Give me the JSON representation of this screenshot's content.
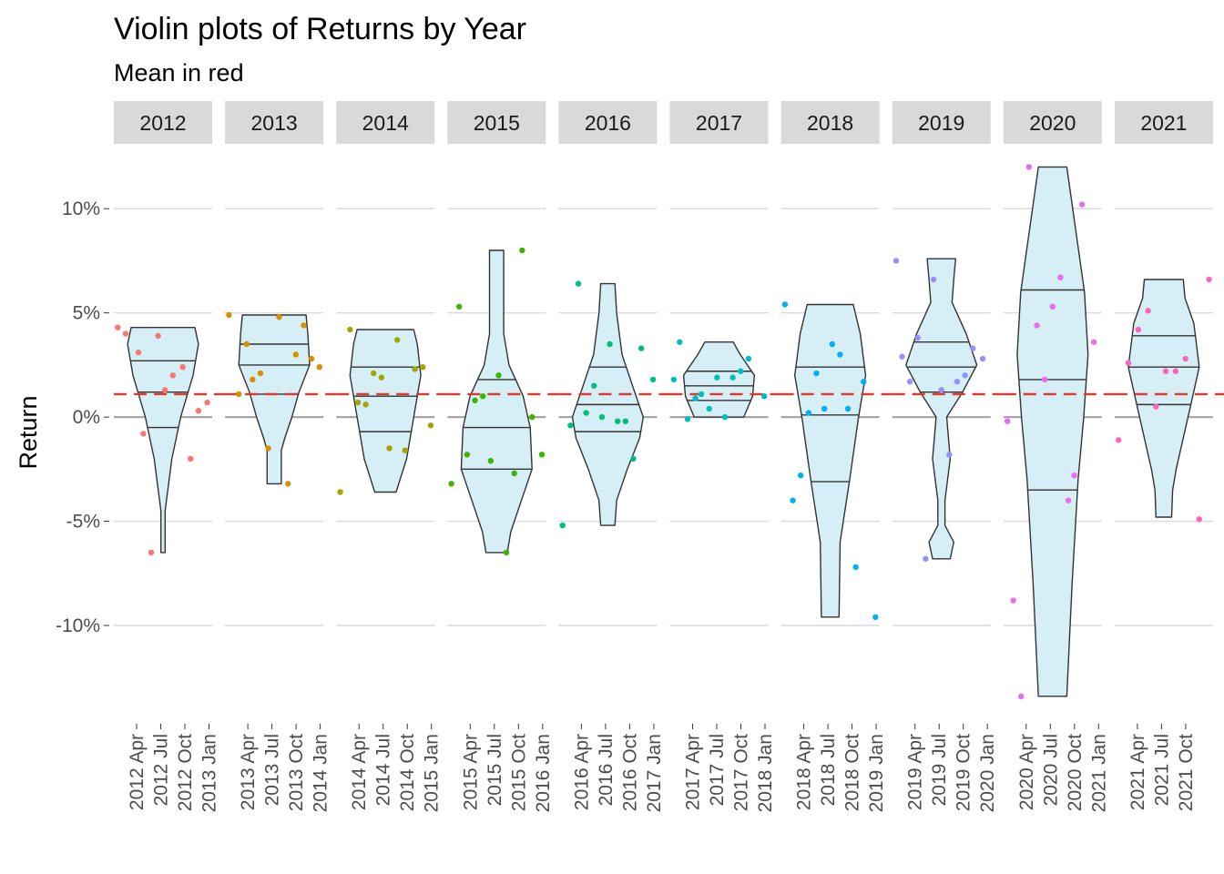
{
  "chart_data": {
    "type": "violin",
    "title": "Violin plots of Returns by Year",
    "subtitle": "Mean in red",
    "ylabel": "Return",
    "xlabel": "",
    "ylim": [
      -0.145,
      0.125
    ],
    "yticks": [
      {
        "value": 0.1,
        "label": "10%"
      },
      {
        "value": 0.05,
        "label": "5%"
      },
      {
        "value": 0.0,
        "label": "0%"
      },
      {
        "value": -0.05,
        "label": "-5%"
      },
      {
        "value": -0.1,
        "label": "-10%"
      }
    ],
    "mean_line": 0.011,
    "colors": {
      "violin_fill": "#d6eef5",
      "violin_stroke": "#333333",
      "mean_line": "#e0362c",
      "zero_line": "#a6a6a6",
      "grid": "#d9d9d9",
      "strip_bg": "#d9d9d9"
    },
    "panels": [
      {
        "year": "2012",
        "color": "#f8766d",
        "xticks": [
          "2012 Apr",
          "2012 Jul",
          "2012 Oct",
          "2013 Jan"
        ],
        "quantiles": [
          -0.005,
          0.012,
          0.027
        ],
        "shape": [
          [
            -0.065,
            0.06
          ],
          [
            -0.045,
            0.06
          ],
          [
            -0.02,
            0.25
          ],
          [
            0.0,
            0.5
          ],
          [
            0.02,
            0.85
          ],
          [
            0.035,
            1.0
          ],
          [
            0.043,
            0.9
          ]
        ],
        "points": [
          [
            0.04,
            0.043
          ],
          [
            0.12,
            0.04
          ],
          [
            0.25,
            0.031
          ],
          [
            0.3,
            -0.008
          ],
          [
            0.38,
            -0.065
          ],
          [
            0.45,
            0.039
          ],
          [
            0.52,
            0.013
          ],
          [
            0.6,
            0.02
          ],
          [
            0.7,
            0.024
          ],
          [
            0.78,
            -0.02
          ],
          [
            0.86,
            0.003
          ],
          [
            0.95,
            0.007
          ]
        ]
      },
      {
        "year": "2013",
        "color": "#d89000",
        "xticks": [
          "2013 Apr",
          "2013 Jul",
          "2013 Oct",
          "2014 Jan"
        ],
        "quantiles": [
          0.011,
          0.025,
          0.035
        ],
        "shape": [
          [
            -0.032,
            0.2
          ],
          [
            -0.016,
            0.2
          ],
          [
            -0.01,
            0.3
          ],
          [
            0.0,
            0.5
          ],
          [
            0.012,
            0.7
          ],
          [
            0.025,
            1.0
          ],
          [
            0.04,
            0.95
          ],
          [
            0.049,
            0.9
          ]
        ],
        "points": [
          [
            0.04,
            0.049
          ],
          [
            0.14,
            0.011
          ],
          [
            0.22,
            0.035
          ],
          [
            0.28,
            0.018
          ],
          [
            0.36,
            0.021
          ],
          [
            0.44,
            -0.015
          ],
          [
            0.55,
            0.048
          ],
          [
            0.64,
            -0.032
          ],
          [
            0.72,
            0.03
          ],
          [
            0.8,
            0.044
          ],
          [
            0.88,
            0.028
          ],
          [
            0.96,
            0.024
          ]
        ]
      },
      {
        "year": "2014",
        "color": "#a3a500",
        "xticks": [
          "2014 Apr",
          "2014 Jul",
          "2014 Oct",
          "2015 Jan"
        ],
        "quantiles": [
          -0.007,
          0.01,
          0.024
        ],
        "shape": [
          [
            -0.036,
            0.3
          ],
          [
            -0.02,
            0.6
          ],
          [
            0.0,
            0.8
          ],
          [
            0.02,
            1.0
          ],
          [
            0.035,
            0.9
          ],
          [
            0.042,
            0.8
          ]
        ],
        "points": [
          [
            0.04,
            -0.036
          ],
          [
            0.14,
            0.042
          ],
          [
            0.22,
            0.007
          ],
          [
            0.3,
            0.006
          ],
          [
            0.38,
            0.021
          ],
          [
            0.46,
            0.019
          ],
          [
            0.54,
            -0.015
          ],
          [
            0.62,
            0.037
          ],
          [
            0.7,
            -0.016
          ],
          [
            0.8,
            0.023
          ],
          [
            0.88,
            0.024
          ],
          [
            0.96,
            -0.004
          ]
        ]
      },
      {
        "year": "2015",
        "color": "#39b600",
        "xticks": [
          "2015 Apr",
          "2015 Jul",
          "2015 Oct",
          "2016 Jan"
        ],
        "quantiles": [
          -0.025,
          -0.005,
          0.018
        ],
        "shape": [
          [
            -0.065,
            0.3
          ],
          [
            -0.055,
            0.4
          ],
          [
            -0.04,
            0.7
          ],
          [
            -0.025,
            1.0
          ],
          [
            -0.005,
            0.95
          ],
          [
            0.01,
            0.75
          ],
          [
            0.025,
            0.35
          ],
          [
            0.04,
            0.2
          ],
          [
            0.07,
            0.2
          ],
          [
            0.08,
            0.2
          ]
        ],
        "points": [
          [
            0.04,
            -0.032
          ],
          [
            0.12,
            0.053
          ],
          [
            0.2,
            -0.018
          ],
          [
            0.28,
            0.008
          ],
          [
            0.36,
            0.01
          ],
          [
            0.44,
            -0.021
          ],
          [
            0.52,
            0.02
          ],
          [
            0.6,
            -0.065
          ],
          [
            0.68,
            -0.027
          ],
          [
            0.76,
            0.08
          ],
          [
            0.86,
            0.0
          ],
          [
            0.96,
            -0.018
          ]
        ]
      },
      {
        "year": "2016",
        "color": "#00bf7d",
        "xticks": [
          "2016 Apr",
          "2016 Jul",
          "2016 Oct",
          "2017 Jan"
        ],
        "quantiles": [
          -0.007,
          0.006,
          0.024
        ],
        "shape": [
          [
            -0.052,
            0.2
          ],
          [
            -0.04,
            0.25
          ],
          [
            -0.025,
            0.55
          ],
          [
            -0.01,
            0.9
          ],
          [
            0.0,
            1.0
          ],
          [
            0.015,
            0.7
          ],
          [
            0.03,
            0.4
          ],
          [
            0.05,
            0.25
          ],
          [
            0.064,
            0.2
          ]
        ],
        "points": [
          [
            0.04,
            -0.052
          ],
          [
            0.12,
            -0.004
          ],
          [
            0.2,
            0.064
          ],
          [
            0.28,
            0.002
          ],
          [
            0.36,
            0.015
          ],
          [
            0.44,
            0.0
          ],
          [
            0.52,
            0.035
          ],
          [
            0.6,
            -0.002
          ],
          [
            0.68,
            -0.002
          ],
          [
            0.76,
            -0.02
          ],
          [
            0.84,
            0.033
          ],
          [
            0.96,
            0.018
          ]
        ]
      },
      {
        "year": "2017",
        "color": "#00bfc4",
        "xticks": [
          "2017 Apr",
          "2017 Jul",
          "2017 Oct",
          "2018 Jan"
        ],
        "quantiles": [
          0.008,
          0.015,
          0.022
        ],
        "shape": [
          [
            0.0,
            0.7
          ],
          [
            0.01,
            0.95
          ],
          [
            0.02,
            1.0
          ],
          [
            0.03,
            0.6
          ],
          [
            0.036,
            0.4
          ]
        ],
        "points": [
          [
            0.04,
            0.018
          ],
          [
            0.1,
            0.036
          ],
          [
            0.18,
            -0.001
          ],
          [
            0.26,
            0.009
          ],
          [
            0.32,
            0.011
          ],
          [
            0.4,
            0.004
          ],
          [
            0.48,
            0.019
          ],
          [
            0.56,
            0.0
          ],
          [
            0.64,
            0.019
          ],
          [
            0.72,
            0.022
          ],
          [
            0.8,
            0.028
          ],
          [
            0.96,
            0.01
          ]
        ]
      },
      {
        "year": "2018",
        "color": "#00b0f6",
        "xticks": [
          "2018 Apr",
          "2018 Jul",
          "2018 Oct",
          "2019 Jan"
        ],
        "quantiles": [
          -0.031,
          0.001,
          0.024
        ],
        "shape": [
          [
            -0.096,
            0.25
          ],
          [
            -0.06,
            0.28
          ],
          [
            -0.03,
            0.55
          ],
          [
            0.0,
            0.8
          ],
          [
            0.02,
            1.0
          ],
          [
            0.04,
            0.85
          ],
          [
            0.054,
            0.65
          ]
        ],
        "points": [
          [
            0.04,
            0.054
          ],
          [
            0.12,
            -0.04
          ],
          [
            0.2,
            -0.028
          ],
          [
            0.28,
            0.002
          ],
          [
            0.36,
            0.021
          ],
          [
            0.44,
            0.004
          ],
          [
            0.52,
            0.035
          ],
          [
            0.6,
            0.03
          ],
          [
            0.68,
            0.004
          ],
          [
            0.76,
            -0.072
          ],
          [
            0.84,
            0.017
          ],
          [
            0.96,
            -0.096
          ]
        ]
      },
      {
        "year": "2019",
        "color": "#9590ff",
        "xticks": [
          "2019 Apr",
          "2019 Jul",
          "2019 Oct",
          "2020 Jan"
        ],
        "quantiles": [
          0.012,
          0.024,
          0.036
        ],
        "shape": [
          [
            -0.068,
            0.25
          ],
          [
            -0.06,
            0.35
          ],
          [
            -0.052,
            0.1
          ],
          [
            -0.04,
            0.1
          ],
          [
            -0.02,
            0.25
          ],
          [
            0.0,
            0.15
          ],
          [
            0.012,
            0.6
          ],
          [
            0.025,
            1.0
          ],
          [
            0.04,
            0.7
          ],
          [
            0.055,
            0.3
          ],
          [
            0.066,
            0.35
          ],
          [
            0.076,
            0.4
          ]
        ],
        "points": [
          [
            0.04,
            0.075
          ],
          [
            0.1,
            0.029
          ],
          [
            0.18,
            0.017
          ],
          [
            0.26,
            0.038
          ],
          [
            0.34,
            -0.068
          ],
          [
            0.42,
            0.066
          ],
          [
            0.5,
            0.013
          ],
          [
            0.58,
            -0.018
          ],
          [
            0.66,
            0.017
          ],
          [
            0.74,
            0.02
          ],
          [
            0.82,
            0.033
          ],
          [
            0.92,
            0.028
          ]
        ]
      },
      {
        "year": "2020",
        "color": "#e76bf3",
        "xticks": [
          "2020 Apr",
          "2020 Jul",
          "2020 Oct",
          "2021 Jan"
        ],
        "quantiles": [
          -0.035,
          0.018,
          0.061
        ],
        "shape": [
          [
            -0.134,
            0.4
          ],
          [
            -0.08,
            0.55
          ],
          [
            -0.03,
            0.72
          ],
          [
            0.0,
            0.88
          ],
          [
            0.03,
            1.0
          ],
          [
            0.06,
            0.9
          ],
          [
            0.09,
            0.65
          ],
          [
            0.12,
            0.4
          ]
        ],
        "points": [
          [
            0.04,
            -0.002
          ],
          [
            0.1,
            -0.088
          ],
          [
            0.18,
            -0.134
          ],
          [
            0.26,
            0.12
          ],
          [
            0.34,
            0.044
          ],
          [
            0.42,
            0.018
          ],
          [
            0.5,
            0.053
          ],
          [
            0.58,
            0.067
          ],
          [
            0.66,
            -0.04
          ],
          [
            0.72,
            -0.028
          ],
          [
            0.8,
            0.102
          ],
          [
            0.92,
            0.036
          ]
        ]
      },
      {
        "year": "2021",
        "color": "#ff62bc",
        "xticks": [
          "2021 Apr",
          "2021 Jul",
          "2021 Oct"
        ],
        "quantiles": [
          0.006,
          0.024,
          0.039
        ],
        "shape": [
          [
            -0.048,
            0.22
          ],
          [
            -0.035,
            0.25
          ],
          [
            -0.025,
            0.35
          ],
          [
            -0.01,
            0.55
          ],
          [
            0.005,
            0.75
          ],
          [
            0.024,
            1.0
          ],
          [
            0.045,
            0.85
          ],
          [
            0.057,
            0.6
          ],
          [
            0.066,
            0.55
          ]
        ],
        "points": [
          [
            0.04,
            -0.011
          ],
          [
            0.14,
            0.026
          ],
          [
            0.24,
            0.042
          ],
          [
            0.34,
            0.051
          ],
          [
            0.42,
            0.005
          ],
          [
            0.52,
            0.022
          ],
          [
            0.62,
            0.022
          ],
          [
            0.72,
            0.028
          ],
          [
            0.86,
            -0.049
          ],
          [
            0.96,
            0.066
          ]
        ]
      }
    ]
  }
}
